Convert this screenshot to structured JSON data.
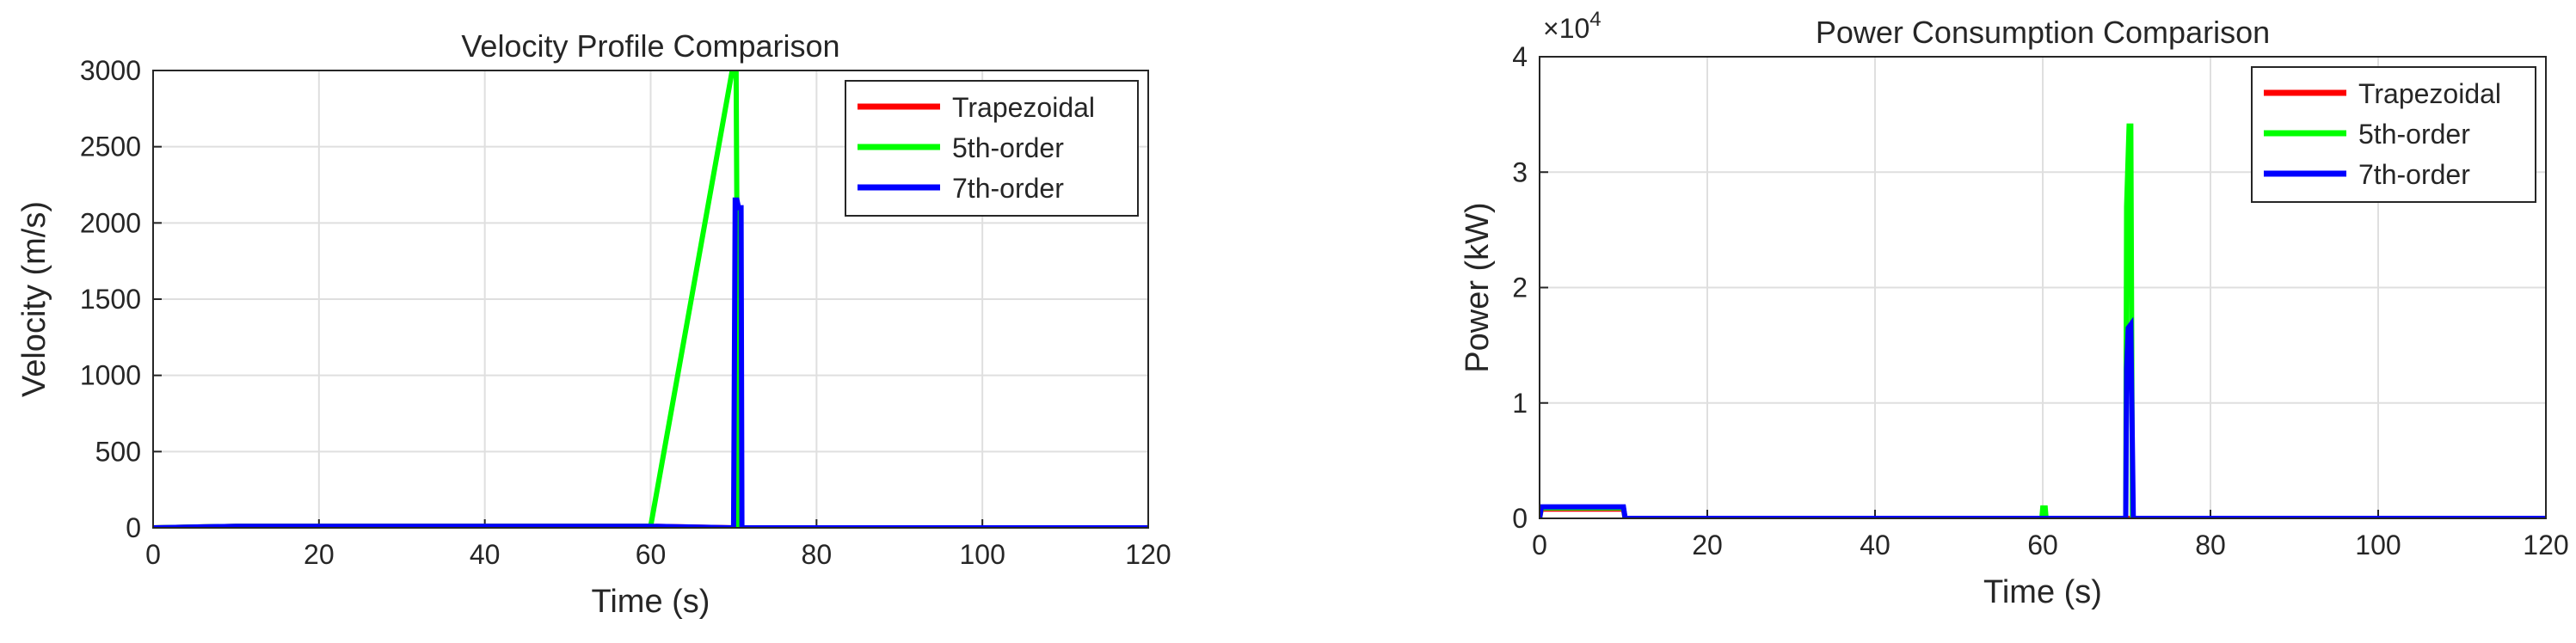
{
  "chart_data": [
    {
      "type": "line",
      "title": "Velocity Profile Comparison",
      "xlabel": "Time (s)",
      "ylabel": "Velocity (m/s)",
      "xlim": [
        0,
        120
      ],
      "ylim": [
        0,
        3000
      ],
      "xticks": [
        "0",
        "20",
        "40",
        "60",
        "80",
        "100",
        "120"
      ],
      "yticks": [
        "0",
        "500",
        "1000",
        "1500",
        "2000",
        "2500",
        "3000"
      ],
      "grid": true,
      "legend_position": "top-right",
      "series": [
        {
          "name": "Trapezoidal",
          "color": "#ff0000",
          "x": [
            0,
            10,
            60,
            70,
            70.3,
            120
          ],
          "y": [
            0,
            10,
            10,
            0,
            0,
            0
          ]
        },
        {
          "name": "5th-order",
          "color": "#00ff00",
          "x": [
            0,
            10,
            60,
            70,
            70.1,
            70.1,
            70.3,
            70.3,
            70.6,
            120
          ],
          "y": [
            0,
            10,
            10,
            3050,
            3050,
            3050,
            3050,
            3050,
            0,
            0
          ]
        },
        {
          "name": "7th-order",
          "color": "#0000ff",
          "x": [
            0,
            10,
            60,
            70,
            70.2,
            70.4,
            70.6,
            70.9,
            71,
            120
          ],
          "y": [
            0,
            10,
            10,
            0,
            2150,
            2150,
            2100,
            2100,
            0,
            0
          ]
        }
      ]
    },
    {
      "type": "line",
      "title": "Power Consumption Comparison",
      "xlabel": "Time (s)",
      "ylabel": "Power (kW)",
      "exponent_label": "×10",
      "exponent_power": "4",
      "xlim": [
        0,
        120
      ],
      "ylim": [
        0,
        40000
      ],
      "xticks": [
        "0",
        "20",
        "40",
        "60",
        "80",
        "100",
        "120"
      ],
      "yticks": [
        "0",
        "1",
        "2",
        "3",
        "4"
      ],
      "grid": true,
      "legend_position": "top-right",
      "series": [
        {
          "name": "Trapezoidal",
          "color": "#ff0000",
          "x": [
            0,
            0.2,
            10,
            10.2,
            60,
            120
          ],
          "y": [
            0,
            800,
            800,
            0,
            0,
            0
          ]
        },
        {
          "name": "5th-order",
          "color": "#00ff00",
          "x": [
            0,
            0.2,
            10,
            10.2,
            59.9,
            60,
            60.3,
            60.4,
            69.9,
            70,
            70.3,
            70.5,
            70.7,
            120
          ],
          "y": [
            0,
            900,
            900,
            0,
            0,
            900,
            900,
            0,
            0,
            27000,
            34000,
            34000,
            0,
            0
          ]
        },
        {
          "name": "7th-order",
          "color": "#0000ff",
          "x": [
            0,
            0.2,
            10,
            10.2,
            69.9,
            70,
            70.2,
            70.5,
            70.8,
            120
          ],
          "y": [
            0,
            1000,
            1000,
            0,
            0,
            13000,
            16500,
            16800,
            0,
            0
          ]
        }
      ]
    }
  ]
}
